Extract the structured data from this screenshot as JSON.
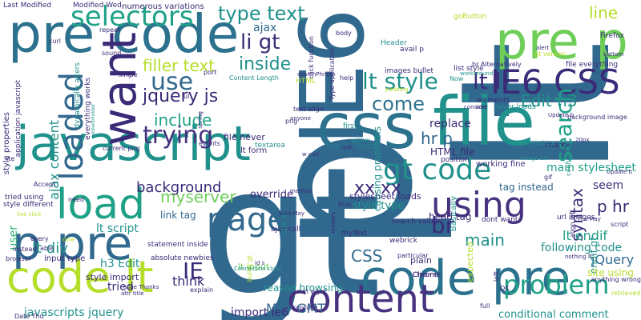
{
  "palette": {
    "navy": "#3b2a78",
    "indigo": "#46327e",
    "dark_purple": "#440154",
    "blue": "#31688e",
    "steel_blue": "#2c728e",
    "teal": "#21918c",
    "sea_green": "#1fa187",
    "green": "#35b779",
    "light_green": "#6ece58",
    "lime": "#b5de2b",
    "yellow": "#fde725",
    "grey_blue": "#3e4a89"
  },
  "words": [
    {
      "text": "gt",
      "color": "blue"
    },
    {
      "text": "lt",
      "color": "blue"
    },
    {
      "text": "p",
      "color": "blue"
    },
    {
      "text": "IE6",
      "color": "blue"
    },
    {
      "text": "pre code",
      "color": "steel_blue"
    },
    {
      "text": "javascript",
      "color": "teal"
    },
    {
      "text": "css",
      "color": "steel_blue"
    },
    {
      "text": "file",
      "color": "teal"
    },
    {
      "text": "pre p",
      "color": "light_green"
    },
    {
      "text": "code pre",
      "color": "steel_blue"
    },
    {
      "text": "content",
      "color": "indigo"
    },
    {
      "text": "code lt",
      "color": "lime"
    },
    {
      "text": "p pre",
      "color": "blue"
    },
    {
      "text": "load",
      "color": "sea_green"
    },
    {
      "text": "want",
      "color": "navy"
    },
    {
      "text": "IE6 CSS",
      "color": "navy"
    },
    {
      "text": "using",
      "color": "indigo"
    },
    {
      "text": "selectors",
      "color": "sea_green"
    },
    {
      "text": "gt code",
      "color": "teal"
    },
    {
      "text": "page",
      "color": "blue"
    },
    {
      "text": "loaded",
      "color": "blue"
    },
    {
      "text": "search",
      "color": "sea_green"
    },
    {
      "text": "lt style",
      "color": "teal"
    },
    {
      "text": "type text",
      "color": "teal"
    },
    {
      "text": "lt li",
      "color": "navy"
    },
    {
      "text": "problem",
      "color": "sea_green"
    },
    {
      "text": "use",
      "color": "blue"
    },
    {
      "text": "come",
      "color": "steel_blue"
    },
    {
      "text": "trying",
      "color": "indigo"
    },
    {
      "text": "li gt",
      "color": "navy"
    },
    {
      "text": "br",
      "color": "navy"
    },
    {
      "text": "inside",
      "color": "teal"
    },
    {
      "text": "include",
      "color": "sea_green"
    },
    {
      "text": "filler text",
      "color": "lime"
    },
    {
      "text": "jquery js",
      "color": "navy"
    },
    {
      "text": "IE",
      "color": "navy"
    },
    {
      "text": "xx xx",
      "color": "navy"
    },
    {
      "text": "myserver",
      "color": "light_green"
    },
    {
      "text": "main",
      "color": "teal"
    },
    {
      "text": "line",
      "color": "lime"
    },
    {
      "text": "Edit h3",
      "color": "teal"
    },
    {
      "text": "CSS",
      "color": "blue"
    },
    {
      "text": "syntax",
      "color": "navy"
    },
    {
      "text": "hr p",
      "color": "blue"
    },
    {
      "text": "p hr",
      "color": "navy"
    },
    {
      "text": "background",
      "color": "navy"
    },
    {
      "text": "ajax content",
      "color": "teal"
    },
    {
      "text": "lt div",
      "color": "teal"
    },
    {
      "text": "javascripts jquery",
      "color": "teal"
    },
    {
      "text": "May GMT",
      "color": "blue"
    },
    {
      "text": "import ie6",
      "color": "navy"
    },
    {
      "text": "conditional comment",
      "color": "teal"
    },
    {
      "text": "lt endif",
      "color": "sea_green"
    },
    {
      "text": "jQuery",
      "color": "blue"
    },
    {
      "text": "replace",
      "color": "navy"
    },
    {
      "text": "think",
      "color": "navy"
    },
    {
      "text": "main stylesheet",
      "color": "sea_green"
    },
    {
      "text": "following code",
      "color": "teal"
    },
    {
      "text": "ajax",
      "color": "blue"
    },
    {
      "text": "lt script",
      "color": "teal"
    },
    {
      "text": "h3 Edit",
      "color": "teal"
    },
    {
      "text": "tried",
      "color": "navy"
    },
    {
      "text": "endif gt",
      "color": "teal"
    },
    {
      "text": "seem",
      "color": "navy"
    },
    {
      "text": "site using",
      "color": "lime"
    },
    {
      "text": "style type",
      "color": "teal"
    },
    {
      "text": "override",
      "color": "navy"
    },
    {
      "text": "head tag",
      "color": "navy"
    },
    {
      "text": "tag instead",
      "color": "blue"
    },
    {
      "text": "reason browsing",
      "color": "teal"
    },
    {
      "text": "link tag",
      "color": "blue"
    },
    {
      "text": "lt form",
      "color": "navy"
    },
    {
      "text": "file never",
      "color": "navy"
    },
    {
      "text": "HTML file",
      "color": "navy"
    },
    {
      "text": "user",
      "color": "green"
    },
    {
      "text": "style import",
      "color": "navy"
    },
    {
      "text": "ajax call",
      "color": "navy"
    },
    {
      "text": "div id",
      "color": "teal"
    },
    {
      "text": "working fine",
      "color": "navy"
    },
    {
      "text": "input type",
      "color": "navy"
    },
    {
      "text": "stylesheet loads",
      "color": "navy"
    },
    {
      "text": "causing problems",
      "color": "teal"
    },
    {
      "text": "numerous variations",
      "color": "navy"
    },
    {
      "text": "myText",
      "color": "navy"
    },
    {
      "text": "plain",
      "color": "navy"
    },
    {
      "text": "webrick",
      "color": "navy"
    },
    {
      "text": "search value",
      "color": "navy"
    },
    {
      "text": "dont want",
      "color": "navy"
    },
    {
      "text": "never loads",
      "color": "teal"
    },
    {
      "text": "list style",
      "color": "navy"
    },
    {
      "text": "elements",
      "color": "navy"
    },
    {
      "text": "lt input",
      "color": "light_green"
    },
    {
      "text": "absolute newbies",
      "color": "navy"
    },
    {
      "text": "statement inside",
      "color": "navy"
    },
    {
      "text": "anything wrong",
      "color": "navy"
    },
    {
      "text": "url images",
      "color": "navy"
    },
    {
      "text": "Chrome",
      "color": "navy"
    },
    {
      "text": "expected",
      "color": "lime"
    },
    {
      "text": "file everything",
      "color": "navy"
    },
    {
      "text": "Firefox",
      "color": "navy"
    },
    {
      "text": "images bullet",
      "color": "navy"
    },
    {
      "text": "Content Length",
      "color": "teal"
    },
    {
      "text": "application javascript",
      "color": "navy"
    },
    {
      "text": "style properties",
      "color": "navy"
    },
    {
      "text": "dynamically alters",
      "color": "teal"
    },
    {
      "text": "everything works",
      "color": "navy"
    },
    {
      "text": "Last Modified",
      "color": "navy"
    },
    {
      "text": "Modified Wed",
      "color": "navy"
    },
    {
      "text": "goButton",
      "color": "lime"
    },
    {
      "text": "background image",
      "color": "navy"
    },
    {
      "text": "tried using",
      "color": "navy"
    },
    {
      "text": "style different",
      "color": "navy"
    },
    {
      "text": "Date Thu",
      "color": "navy"
    },
    {
      "text": "Wed May",
      "color": "navy"
    },
    {
      "text": "Thu May",
      "color": "navy"
    },
    {
      "text": "image url",
      "color": "teal"
    },
    {
      "text": "position",
      "color": "navy"
    },
    {
      "text": "alert",
      "color": "navy"
    },
    {
      "text": "Update b",
      "color": "navy"
    },
    {
      "text": "20px",
      "color": "navy"
    },
    {
      "text": "bottom",
      "color": "navy"
    },
    {
      "text": "first",
      "color": "teal"
    },
    {
      "text": "within",
      "color": "teal"
    },
    {
      "text": "task",
      "color": "navy"
    },
    {
      "text": "change",
      "color": "navy"
    },
    {
      "text": "Basically",
      "color": "teal"
    },
    {
      "text": "particular",
      "color": "navy"
    },
    {
      "text": "explain",
      "color": "navy"
    },
    {
      "text": "bullet gt",
      "color": "lime"
    },
    {
      "text": "full",
      "color": "navy"
    },
    {
      "text": "curl wget",
      "color": "navy"
    },
    {
      "text": "Chrome",
      "color": "navy"
    },
    {
      "text": "confuse",
      "color": "navy"
    },
    {
      "text": "retrieved",
      "color": "lime"
    },
    {
      "text": "left",
      "color": "navy"
    },
    {
      "text": "OK",
      "color": "navy"
    },
    {
      "text": "instead",
      "color": "navy"
    },
    {
      "text": "browser",
      "color": "navy"
    },
    {
      "text": "able",
      "color": "navy"
    },
    {
      "text": "one",
      "color": "lime"
    },
    {
      "text": "every",
      "color": "navy"
    },
    {
      "text": "need",
      "color": "navy"
    },
    {
      "text": "live click",
      "color": "lime"
    },
    {
      "text": "Accept",
      "color": "navy"
    },
    {
      "text": "current png",
      "color": "navy"
    },
    {
      "text": "events",
      "color": "navy"
    },
    {
      "text": "textarea",
      "color": "teal"
    },
    {
      "text": "anyone",
      "color": "navy"
    },
    {
      "text": "text align",
      "color": "navy"
    },
    {
      "text": "method",
      "color": "navy"
    },
    {
      "text": "Connection close",
      "color": "teal"
    },
    {
      "text": "id s",
      "color": "navy"
    },
    {
      "text": "attr title",
      "color": "navy"
    },
    {
      "text": "issue Thanks",
      "color": "navy"
    },
    {
      "text": "Header",
      "color": "teal"
    },
    {
      "text": "avail p",
      "color": "navy"
    },
    {
      "text": "Type application",
      "color": "navy"
    },
    {
      "text": "click function",
      "color": "navy"
    },
    {
      "text": "HTML",
      "color": "lime"
    },
    {
      "text": "help",
      "color": "navy"
    },
    {
      "text": "Now",
      "color": "teal"
    },
    {
      "text": "Something",
      "color": "teal"
    },
    {
      "text": "padding",
      "color": "lime"
    },
    {
      "text": "consider",
      "color": "navy"
    },
    {
      "text": "sort",
      "color": "navy"
    },
    {
      "text": "single",
      "color": "navy"
    },
    {
      "text": "repeat",
      "color": "navy"
    },
    {
      "text": "sound",
      "color": "navy"
    },
    {
      "text": "curl",
      "color": "navy"
    },
    {
      "text": "png",
      "color": "navy"
    },
    {
      "text": "body",
      "color": "navy"
    },
    {
      "text": "port",
      "color": "navy"
    },
    {
      "text": "Plus",
      "color": "navy"
    },
    {
      "text": "gif",
      "color": "navy"
    },
    {
      "text": "ul",
      "color": "navy"
    },
    {
      "text": "br Alternatively",
      "color": "navy"
    },
    {
      "text": "gt version",
      "color": "lime"
    },
    {
      "text": "connected",
      "color": "teal"
    },
    {
      "text": "workaround",
      "color": "teal"
    },
    {
      "text": "renders",
      "color": "navy"
    },
    {
      "text": "nothing lt",
      "color": "navy"
    },
    {
      "text": "align left",
      "color": "navy"
    },
    {
      "text": "script",
      "color": "navy"
    },
    {
      "text": "lte",
      "color": "navy"
    },
    {
      "text": "searchPhrase",
      "color": "navy"
    },
    {
      "text": "w curl",
      "color": "navy"
    },
    {
      "text": "contentHolder",
      "color": "teal"
    },
    {
      "text": "spring",
      "color": "navy"
    },
    {
      "text": "Update b",
      "color": "navy"
    }
  ]
}
